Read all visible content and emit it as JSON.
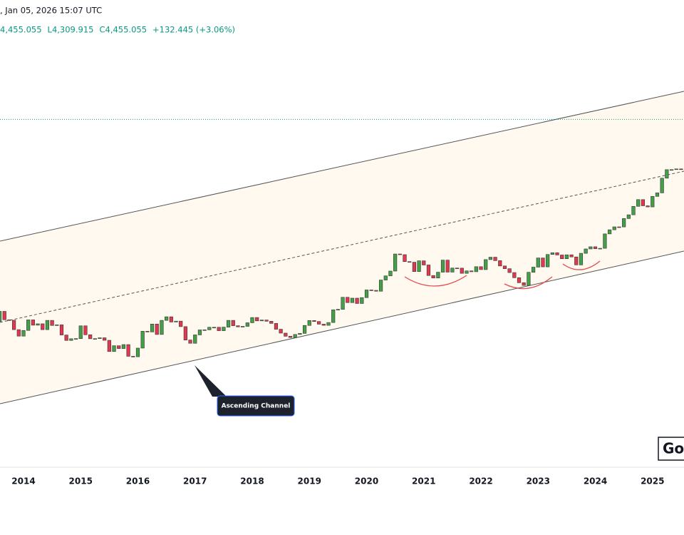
{
  "header": {
    "timestamp": ", Jan 05, 2026 15:07 UTC",
    "quotes": [
      {
        "value": 4455.055,
        "label": "4,455.055"
      },
      {
        "value": 4309.915,
        "label": "L4,309.915"
      },
      {
        "value": 4455.055,
        "label": "C4,455.055"
      },
      {
        "value": 132.445,
        "label": "+132.445 (+3.06%)"
      }
    ]
  },
  "chart_data": {
    "type": "candlestick",
    "log_scale": true,
    "ylim": [
      544,
      7235
    ],
    "xlim": [
      2013.589,
      2025.551
    ],
    "xticks": [
      2014,
      2015,
      2016,
      2017,
      2018,
      2019,
      2020,
      2021,
      2022,
      2023,
      2024,
      2025
    ],
    "up_color": "#43a047",
    "down_color": "#e0394f",
    "annotation": "Ascending Channel",
    "years": [
      {
        "year": 2013,
        "close": [
          null,
          null,
          null,
          null,
          null,
          null,
          1313,
          1396,
          1327,
          1323,
          1250,
          1202
        ]
      },
      {
        "year": 2014,
        "close": [
          1244,
          1326,
          1284,
          1295,
          1250,
          1322,
          1282,
          1287,
          1210,
          1171,
          1183,
          1184
        ]
      },
      {
        "year": 2015,
        "close": [
          1279,
          1212,
          1183,
          1184,
          1190,
          1172,
          1095,
          1134,
          1115,
          1142,
          1064,
          1061
        ]
      },
      {
        "year": 2016,
        "close": [
          1118,
          1238,
          1233,
          1293,
          1214,
          1322,
          1351,
          1309,
          1316,
          1273,
          1174,
          1151
        ]
      },
      {
        "year": 2017,
        "close": [
          1211,
          1248,
          1249,
          1268,
          1268,
          1242,
          1269,
          1322,
          1280,
          1271,
          1275,
          1303
        ]
      },
      {
        "year": 2018,
        "close": [
          1345,
          1318,
          1325,
          1315,
          1298,
          1253,
          1224,
          1201,
          1192,
          1214,
          1222,
          1282
        ]
      },
      {
        "year": 2019,
        "close": [
          1321,
          1313,
          1292,
          1283,
          1305,
          1409,
          1413,
          1520,
          1472,
          1512,
          1464,
          1517
        ]
      },
      {
        "year": 2020,
        "close": [
          1589,
          1585,
          1577,
          1687,
          1730,
          1781,
          1975,
          1967,
          1886,
          1879,
          1776,
          1895
        ]
      },
      {
        "year": 2021,
        "close": [
          1848,
          1734,
          1708,
          1769,
          1903,
          1770,
          1814,
          1813,
          1757,
          1783,
          1774,
          1829
        ]
      },
      {
        "year": 2022,
        "close": [
          1797,
          1909,
          1937,
          1897,
          1837,
          1807,
          1765,
          1711,
          1660,
          1633,
          1768,
          1824
        ]
      },
      {
        "year": 2023,
        "close": [
          1928,
          1827,
          1969,
          1990,
          1963,
          1919,
          1965,
          1940,
          1849,
          1983,
          2036,
          2063
        ]
      },
      {
        "year": 2024,
        "close": [
          2039,
          2044,
          2230,
          2286,
          2327,
          2326,
          2447,
          2503,
          2634,
          2744,
          2643,
          2625
        ]
      },
      {
        "year": 2025,
        "close": [
          2798,
          2858,
          3123,
          3288,
          3289,
          3303,
          3290
        ]
      }
    ]
  },
  "logo": "Go"
}
